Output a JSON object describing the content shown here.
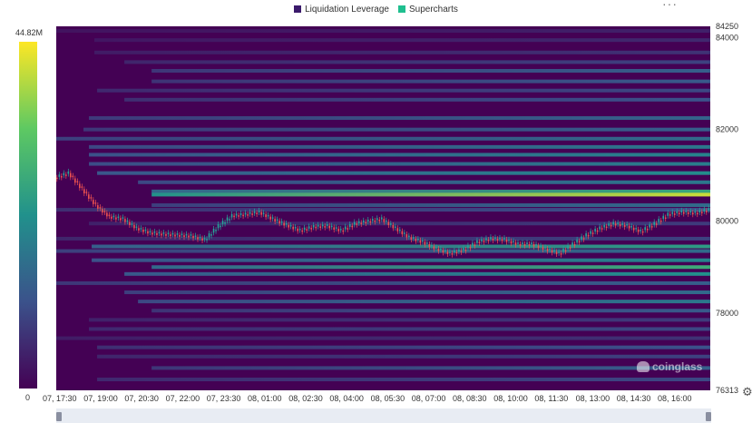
{
  "legend": [
    {
      "label": "Liquidation Leverage",
      "color": "#3b1a6b"
    },
    {
      "label": "Supercharts",
      "color": "#1fbf8f"
    }
  ],
  "colorbar": {
    "max_label": "44.82M",
    "min_label": "0",
    "max": 44820000,
    "min": 0
  },
  "watermark": "coinglass",
  "icons": {
    "more": "more-dots-icon",
    "settings": "settings-gear-icon",
    "watermark": "coinglass-logo-icon"
  },
  "colors": {
    "background": "#440154",
    "candle_up": "#26a69a",
    "candle_down": "#ef5350"
  },
  "chart_data": {
    "type": "heatmap",
    "title": "",
    "xlabel": "",
    "ylabel": "",
    "x_ticks": [
      "07, 17:30",
      "07, 19:00",
      "07, 20:30",
      "07, 22:00",
      "07, 23:30",
      "08, 01:00",
      "08, 02:30",
      "08, 04:00",
      "08, 05:30",
      "08, 07:00",
      "08, 08:30",
      "08, 10:00",
      "08, 11:30",
      "08, 13:00",
      "08, 14:30",
      "08, 16:00"
    ],
    "y_ticks": [
      84250,
      84000,
      82000,
      80000,
      78000,
      76313
    ],
    "ylim": [
      76313,
      84250
    ],
    "x_range_hours": [
      0,
      24
    ],
    "price_series": [
      [
        0.0,
        80950
      ],
      [
        0.5,
        81050
      ],
      [
        1.0,
        80700
      ],
      [
        1.5,
        80350
      ],
      [
        2.0,
        80100
      ],
      [
        2.5,
        80050
      ],
      [
        3.0,
        79850
      ],
      [
        3.5,
        79750
      ],
      [
        4.0,
        79720
      ],
      [
        4.5,
        79700
      ],
      [
        5.0,
        79680
      ],
      [
        5.5,
        79600
      ],
      [
        6.0,
        79900
      ],
      [
        6.5,
        80120
      ],
      [
        7.0,
        80150
      ],
      [
        7.5,
        80200
      ],
      [
        8.0,
        80050
      ],
      [
        8.5,
        79920
      ],
      [
        9.0,
        79800
      ],
      [
        9.5,
        79880
      ],
      [
        10.0,
        79900
      ],
      [
        10.5,
        79800
      ],
      [
        11.0,
        79950
      ],
      [
        11.5,
        80000
      ],
      [
        12.0,
        80050
      ],
      [
        12.5,
        79850
      ],
      [
        13.0,
        79650
      ],
      [
        13.5,
        79550
      ],
      [
        14.0,
        79400
      ],
      [
        14.5,
        79300
      ],
      [
        15.0,
        79380
      ],
      [
        15.5,
        79550
      ],
      [
        16.0,
        79620
      ],
      [
        16.5,
        79600
      ],
      [
        17.0,
        79500
      ],
      [
        17.5,
        79500
      ],
      [
        18.0,
        79400
      ],
      [
        18.5,
        79300
      ],
      [
        19.0,
        79500
      ],
      [
        19.5,
        79700
      ],
      [
        20.0,
        79850
      ],
      [
        20.5,
        79950
      ],
      [
        21.0,
        79900
      ],
      [
        21.5,
        79780
      ],
      [
        22.0,
        79950
      ],
      [
        22.5,
        80150
      ],
      [
        23.0,
        80200
      ],
      [
        23.5,
        80180
      ],
      [
        24.0,
        80250
      ]
    ],
    "liquidation_bands": [
      {
        "price": 84150,
        "start_h": 0.0,
        "intensity": 0.1
      },
      {
        "price": 83950,
        "start_h": 1.4,
        "intensity": 0.12
      },
      {
        "price": 83680,
        "start_h": 1.4,
        "intensity": 0.15
      },
      {
        "price": 83470,
        "start_h": 2.5,
        "intensity": 0.2
      },
      {
        "price": 83280,
        "start_h": 3.5,
        "intensity": 0.3
      },
      {
        "price": 83050,
        "start_h": 3.5,
        "intensity": 0.28
      },
      {
        "price": 82850,
        "start_h": 1.5,
        "intensity": 0.22
      },
      {
        "price": 82650,
        "start_h": 2.5,
        "intensity": 0.25
      },
      {
        "price": 82250,
        "start_h": 1.2,
        "intensity": 0.32
      },
      {
        "price": 82000,
        "start_h": 1.0,
        "intensity": 0.3
      },
      {
        "price": 81800,
        "start_h": 0.0,
        "intensity": 0.35
      },
      {
        "price": 81620,
        "start_h": 1.2,
        "intensity": 0.4
      },
      {
        "price": 81450,
        "start_h": 1.2,
        "intensity": 0.45
      },
      {
        "price": 81250,
        "start_h": 1.2,
        "intensity": 0.42
      },
      {
        "price": 81050,
        "start_h": 1.5,
        "intensity": 0.48
      },
      {
        "price": 80850,
        "start_h": 3.0,
        "intensity": 0.4
      },
      {
        "price": 80650,
        "start_h": 3.5,
        "intensity": 0.6
      },
      {
        "price": 80580,
        "start_h": 3.5,
        "intensity": 0.92
      },
      {
        "price": 80350,
        "start_h": 3.5,
        "intensity": 0.35
      },
      {
        "price": 80250,
        "start_h": 0.0,
        "intensity": 0.25
      },
      {
        "price": 79950,
        "start_h": 1.2,
        "intensity": 0.18
      },
      {
        "price": 79620,
        "start_h": 0.0,
        "intensity": 0.2
      },
      {
        "price": 79450,
        "start_h": 1.3,
        "intensity": 0.55
      },
      {
        "price": 79350,
        "start_h": 0.0,
        "intensity": 0.35
      },
      {
        "price": 79150,
        "start_h": 1.3,
        "intensity": 0.45
      },
      {
        "price": 79000,
        "start_h": 3.5,
        "intensity": 0.62
      },
      {
        "price": 78850,
        "start_h": 2.5,
        "intensity": 0.5
      },
      {
        "price": 78650,
        "start_h": 0.0,
        "intensity": 0.3
      },
      {
        "price": 78450,
        "start_h": 2.5,
        "intensity": 0.35
      },
      {
        "price": 78250,
        "start_h": 3.0,
        "intensity": 0.4
      },
      {
        "price": 78050,
        "start_h": 3.5,
        "intensity": 0.28
      },
      {
        "price": 77850,
        "start_h": 1.2,
        "intensity": 0.18
      },
      {
        "price": 77650,
        "start_h": 1.2,
        "intensity": 0.22
      },
      {
        "price": 77450,
        "start_h": 0.0,
        "intensity": 0.15
      },
      {
        "price": 77250,
        "start_h": 1.5,
        "intensity": 0.25
      },
      {
        "price": 77050,
        "start_h": 1.5,
        "intensity": 0.2
      },
      {
        "price": 76800,
        "start_h": 3.5,
        "intensity": 0.3
      },
      {
        "price": 76550,
        "start_h": 1.5,
        "intensity": 0.22
      }
    ]
  }
}
